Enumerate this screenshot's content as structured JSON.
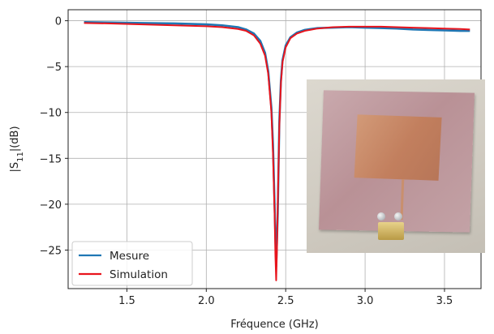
{
  "chart_data": {
    "type": "line",
    "xlabel": "Fréquence (GHz)",
    "ylabel_prefix": "|S",
    "ylabel_sub": "11",
    "ylabel_suffix": "|(dB)",
    "xlim": [
      1.13,
      3.73
    ],
    "ylim": [
      -29.2,
      1.2
    ],
    "x_ticks": [
      1.5,
      2.0,
      2.5,
      3.0,
      3.5
    ],
    "x_tick_labels": [
      "1.5",
      "2.0",
      "2.5",
      "3.0",
      "3.5"
    ],
    "y_ticks": [
      0,
      -5,
      -10,
      -15,
      -20,
      -25
    ],
    "y_tick_labels": [
      "0",
      "−5",
      "−10",
      "−15",
      "−20",
      "−25"
    ],
    "grid": true,
    "legend_position": "lower-left",
    "series": [
      {
        "name": "Mesure",
        "color": "#1f77b4",
        "x": [
          1.23,
          1.4,
          1.6,
          1.8,
          2.0,
          2.1,
          2.2,
          2.25,
          2.3,
          2.34,
          2.37,
          2.39,
          2.41,
          2.42,
          2.43,
          2.44,
          2.45,
          2.46,
          2.47,
          2.48,
          2.5,
          2.53,
          2.57,
          2.62,
          2.7,
          2.8,
          2.9,
          3.0,
          3.1,
          3.2,
          3.3,
          3.4,
          3.5,
          3.6,
          3.66
        ],
        "y": [
          -0.15,
          -0.2,
          -0.25,
          -0.3,
          -0.4,
          -0.5,
          -0.7,
          -0.95,
          -1.4,
          -2.2,
          -3.5,
          -5.5,
          -9.5,
          -13.5,
          -20.0,
          -26.8,
          -21.0,
          -11.0,
          -6.5,
          -4.3,
          -2.7,
          -1.8,
          -1.3,
          -1.0,
          -0.8,
          -0.75,
          -0.7,
          -0.75,
          -0.8,
          -0.85,
          -0.95,
          -1.0,
          -1.05,
          -1.1,
          -1.1
        ]
      },
      {
        "name": "Simulation",
        "color": "#e8141c",
        "x": [
          1.23,
          1.4,
          1.6,
          1.8,
          2.0,
          2.1,
          2.2,
          2.25,
          2.3,
          2.34,
          2.37,
          2.39,
          2.41,
          2.42,
          2.43,
          2.435,
          2.44,
          2.445,
          2.45,
          2.46,
          2.47,
          2.48,
          2.5,
          2.53,
          2.57,
          2.62,
          2.7,
          2.8,
          2.9,
          3.0,
          3.1,
          3.2,
          3.3,
          3.4,
          3.5,
          3.6,
          3.66
        ],
        "y": [
          -0.25,
          -0.3,
          -0.4,
          -0.5,
          -0.6,
          -0.7,
          -0.9,
          -1.1,
          -1.6,
          -2.5,
          -3.8,
          -5.8,
          -10.0,
          -14.5,
          -21.0,
          -25.5,
          -28.3,
          -25.0,
          -20.0,
          -11.5,
          -6.8,
          -4.5,
          -2.9,
          -1.9,
          -1.4,
          -1.1,
          -0.85,
          -0.7,
          -0.65,
          -0.65,
          -0.65,
          -0.7,
          -0.75,
          -0.8,
          -0.85,
          -0.9,
          -0.95
        ]
      }
    ]
  },
  "inset_photo": {
    "description_icon": "antenna-photo"
  }
}
